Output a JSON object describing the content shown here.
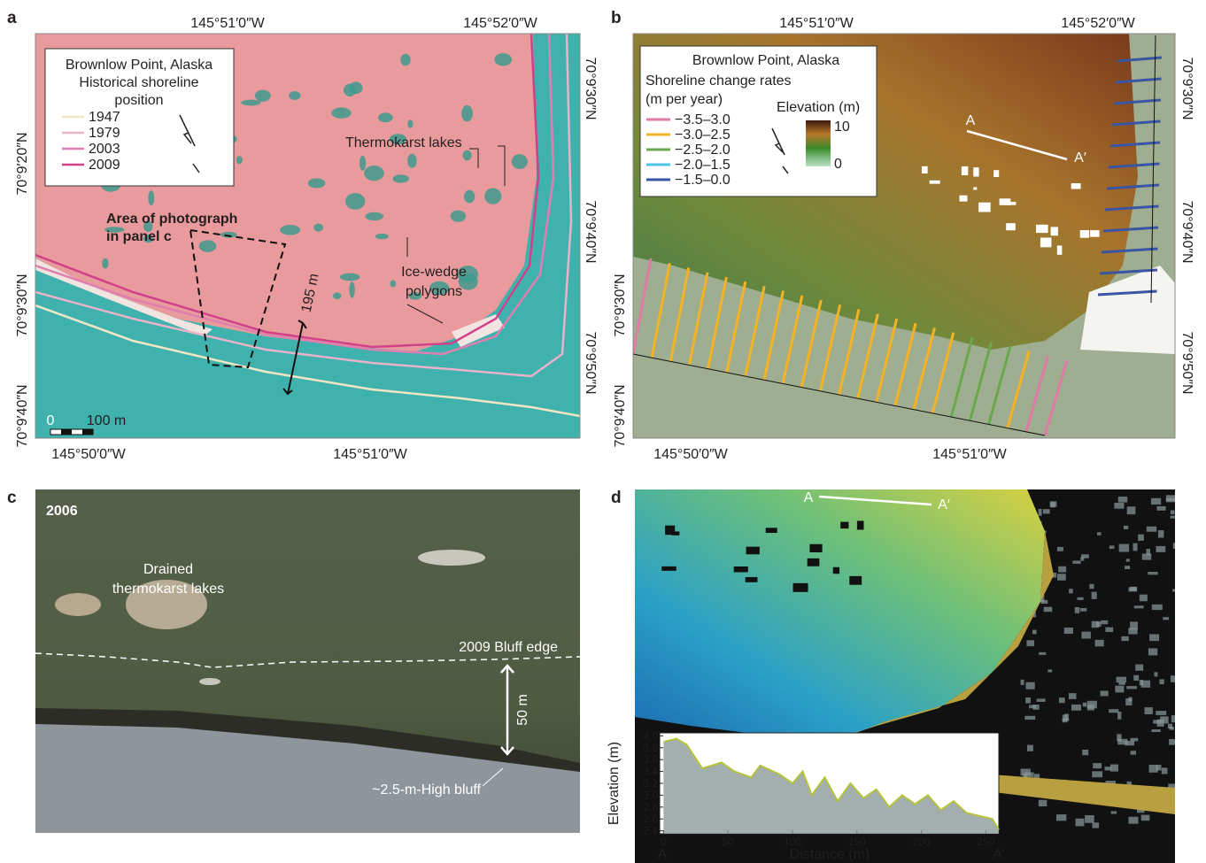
{
  "panels": {
    "a": {
      "letter": "a",
      "top_labels": [
        "145°51′0″W",
        "145°52′0″W"
      ],
      "bottom_labels": [
        "145°50′0″W",
        "145°51′0″W"
      ],
      "left_labels": [
        "70°9′20″N",
        "70°9′30″N",
        "70°9′40″N"
      ],
      "right_labels": [
        "70°9′30″N",
        "70°9′40″N",
        "70°9′50″N"
      ],
      "legend": {
        "title": [
          "Brownlow Point, Alaska",
          "Historical shoreline",
          "position"
        ],
        "items": [
          {
            "name": "1947",
            "color": "#f1e6c4"
          },
          {
            "name": "1979",
            "color": "#e9b3c9"
          },
          {
            "name": "2003",
            "color": "#df7fb0"
          },
          {
            "name": "2009",
            "color": "#d0418a"
          }
        ]
      },
      "photo_area": [
        "Area of photograph",
        "in panel c"
      ],
      "distance": "195 m",
      "lakes_label": "Thermokarst lakes",
      "polygons_label": [
        "Ice-wedge",
        "polygons"
      ],
      "scale": [
        "0",
        "100 m"
      ]
    },
    "b": {
      "letter": "b",
      "top_labels": [
        "145°51′0″W",
        "145°52′0″W"
      ],
      "bottom_labels": [
        "145°50′0″W",
        "145°51′0″W"
      ],
      "left_labels": [
        "70°9′30″N",
        "70°9′40″N"
      ],
      "right_labels": [
        "70°9′30″N",
        "70°9′40″N",
        "70°9′50″N"
      ],
      "legend": {
        "title": [
          "Brownlow Point, Alaska",
          "Shoreline change rates",
          "(m per year)"
        ],
        "items": [
          {
            "name": "−3.5–3.0",
            "color": "#e07aa6"
          },
          {
            "name": "−3.0–2.5",
            "color": "#f5b324"
          },
          {
            "name": "−2.5–2.0",
            "color": "#6aa84f"
          },
          {
            "name": "−2.0–1.5",
            "color": "#4fc3e8"
          },
          {
            "name": "−1.5–0.0",
            "color": "#3a55a4"
          }
        ]
      },
      "elevation_legend": {
        "title": "Elevation (m)",
        "max": "10",
        "min": "0"
      },
      "profile_ends": [
        "A",
        "A′"
      ]
    },
    "c": {
      "letter": "c",
      "year": "2006",
      "lakes_label": [
        "Drained",
        "thermokarst lakes"
      ],
      "bluff_edge": "2009 Bluff edge",
      "distance": "50 m",
      "bluff_label": "~2.5-m-High bluff"
    },
    "d": {
      "letter": "d",
      "profile_ends": [
        "A",
        "A′"
      ],
      "profile": {
        "type": "line",
        "x_label": "Distance (m)",
        "y_label": "Elevation (m)",
        "end_labels": [
          "A",
          "A′"
        ],
        "color": "#b5c23a",
        "x": [
          0,
          10,
          18,
          30,
          45,
          55,
          68,
          75,
          90,
          100,
          108,
          115,
          125,
          135,
          145,
          155,
          165,
          175,
          185,
          195,
          205,
          215,
          225,
          235,
          245,
          255,
          260
        ],
        "values": [
          3.9,
          3.95,
          3.85,
          3.45,
          3.55,
          3.4,
          3.3,
          3.5,
          3.35,
          3.2,
          3.4,
          3.0,
          3.3,
          2.9,
          3.2,
          2.95,
          3.1,
          2.8,
          3.0,
          2.85,
          3.0,
          2.75,
          2.9,
          2.7,
          2.65,
          2.6,
          2.42
        ],
        "xlim": [
          -3,
          260
        ],
        "ylim": [
          2.35,
          4.05
        ],
        "xticks": [
          0,
          50,
          100,
          150,
          200,
          250
        ],
        "yticks": [
          2.4,
          2.6,
          2.8,
          {
            "value": 3,
            "label": "3.0"
          },
          3.2,
          3.4,
          3.6,
          3.8,
          {
            "value": 4,
            "label": "4.0"
          }
        ]
      }
    }
  }
}
